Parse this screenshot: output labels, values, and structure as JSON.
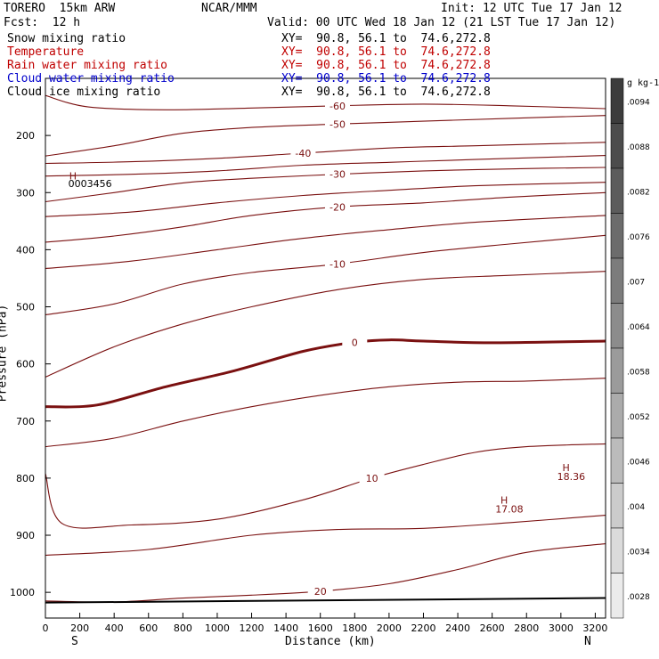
{
  "header": {
    "model": "TORERO  15km ARW",
    "forecast": "Fcst:  12 h",
    "center": "NCAR/MMM",
    "init": "Init: 12 UTC Tue 17 Jan 12",
    "valid": "Valid: 00 UTC Wed 18 Jan 12 (21 LST Tue 17 Jan 12)"
  },
  "legend": [
    {
      "label": "Snow mixing ratio",
      "xy": "XY=  90.8, 56.1 to  74.6,272.8",
      "color": "#000000"
    },
    {
      "label": "Temperature",
      "xy": "XY=  90.8, 56.1 to  74.6,272.8",
      "color": "#c00000"
    },
    {
      "label": "Rain water mixing ratio",
      "xy": "XY=  90.8, 56.1 to  74.6,272.8",
      "color": "#c00000"
    },
    {
      "label": "Cloud water mixing ratio",
      "xy": "XY=  90.8, 56.1 to  74.6,272.8",
      "color": "#0000cc"
    },
    {
      "label": "Cloud ice mixing ratio",
      "xy": "XY=  90.8, 56.1 to  74.6,272.8",
      "color": "#000000"
    }
  ],
  "colorbar": {
    "unit": "g kg-1",
    "ticks": [
      ".0094",
      ".0088",
      ".0082",
      ".0076",
      ".007",
      ".0064",
      ".0058",
      ".0052",
      ".0046",
      ".004",
      ".0034",
      ".0028"
    ]
  },
  "chart_data": {
    "type": "contour",
    "xlabel": "Distance (km)",
    "ylabel": "Pressure (hPa)",
    "x_ticks": [
      0,
      200,
      400,
      600,
      800,
      1000,
      1200,
      1400,
      1600,
      1800,
      2000,
      2200,
      2400,
      2600,
      2800,
      3000,
      3200
    ],
    "y_ticks": [
      200,
      300,
      400,
      500,
      600,
      700,
      800,
      900,
      1000
    ],
    "xlim": [
      0,
      3260
    ],
    "ylim": [
      1045,
      100
    ],
    "x_end_labels": {
      "left": "S",
      "right": "N"
    },
    "isotherms": [
      {
        "value": -60,
        "points": [
          [
            0,
            130
          ],
          [
            250,
            150
          ],
          [
            700,
            155
          ],
          [
            1200,
            152
          ],
          [
            1700,
            148
          ],
          [
            2200,
            145
          ],
          [
            2700,
            148
          ],
          [
            3260,
            153
          ]
        ]
      },
      {
        "value": -50,
        "points": [
          [
            0,
            236
          ],
          [
            400,
            218
          ],
          [
            800,
            196
          ],
          [
            1200,
            186
          ],
          [
            1700,
            180
          ],
          [
            2200,
            175
          ],
          [
            2700,
            170
          ],
          [
            3260,
            165
          ]
        ]
      },
      {
        "value": -40,
        "points": [
          [
            0,
            249
          ],
          [
            500,
            246
          ],
          [
            1000,
            240
          ],
          [
            1500,
            231
          ],
          [
            2000,
            222
          ],
          [
            2500,
            218
          ],
          [
            3260,
            212
          ]
        ]
      },
      {
        "value": -35,
        "points": [
          [
            0,
            271
          ],
          [
            500,
            268
          ],
          [
            1000,
            262
          ],
          [
            1500,
            252
          ],
          [
            2000,
            247
          ],
          [
            2500,
            242
          ],
          [
            3260,
            235
          ]
        ]
      },
      {
        "value": -30,
        "points": [
          [
            0,
            316
          ],
          [
            400,
            300
          ],
          [
            800,
            283
          ],
          [
            1200,
            275
          ],
          [
            1700,
            268
          ],
          [
            2200,
            262
          ],
          [
            2800,
            258
          ],
          [
            3260,
            256
          ]
        ]
      },
      {
        "value": -25,
        "points": [
          [
            0,
            342
          ],
          [
            500,
            334
          ],
          [
            1000,
            318
          ],
          [
            1500,
            305
          ],
          [
            2000,
            296
          ],
          [
            2500,
            288
          ],
          [
            3260,
            282
          ]
        ]
      },
      {
        "value": -20,
        "points": [
          [
            0,
            387
          ],
          [
            400,
            376
          ],
          [
            800,
            360
          ],
          [
            1200,
            340
          ],
          [
            1700,
            325
          ],
          [
            2200,
            318
          ],
          [
            2700,
            308
          ],
          [
            3260,
            300
          ]
        ]
      },
      {
        "value": -15,
        "points": [
          [
            0,
            433
          ],
          [
            500,
            420
          ],
          [
            1000,
            400
          ],
          [
            1500,
            380
          ],
          [
            2000,
            365
          ],
          [
            2500,
            352
          ],
          [
            3260,
            340
          ]
        ]
      },
      {
        "value": -10,
        "points": [
          [
            0,
            514
          ],
          [
            400,
            495
          ],
          [
            800,
            460
          ],
          [
            1200,
            440
          ],
          [
            1700,
            425
          ],
          [
            2200,
            405
          ],
          [
            2700,
            390
          ],
          [
            3260,
            375
          ]
        ]
      },
      {
        "value": -5,
        "points": [
          [
            0,
            623
          ],
          [
            400,
            570
          ],
          [
            800,
            530
          ],
          [
            1200,
            500
          ],
          [
            1700,
            470
          ],
          [
            2200,
            452
          ],
          [
            2700,
            445
          ],
          [
            3260,
            438
          ]
        ]
      },
      {
        "value": 0,
        "points": [
          [
            0,
            675
          ],
          [
            300,
            672
          ],
          [
            700,
            640
          ],
          [
            1100,
            612
          ],
          [
            1500,
            578
          ],
          [
            1800,
            562
          ],
          [
            2000,
            558
          ],
          [
            2200,
            560
          ],
          [
            2600,
            563
          ],
          [
            3260,
            560
          ]
        ]
      },
      {
        "value": 5,
        "points": [
          [
            0,
            745
          ],
          [
            400,
            730
          ],
          [
            800,
            700
          ],
          [
            1200,
            675
          ],
          [
            1600,
            655
          ],
          [
            2000,
            640
          ],
          [
            2400,
            632
          ],
          [
            2800,
            630
          ],
          [
            3260,
            625
          ]
        ]
      },
      {
        "value": 10,
        "points": [
          [
            0,
            792
          ],
          [
            100,
            880
          ],
          [
            500,
            882
          ],
          [
            1000,
            872
          ],
          [
            1500,
            838
          ],
          [
            1900,
            800
          ],
          [
            2200,
            776
          ],
          [
            2500,
            755
          ],
          [
            2800,
            745
          ],
          [
            3260,
            740
          ]
        ]
      },
      {
        "value": 15,
        "points": [
          [
            0,
            935
          ],
          [
            600,
            925
          ],
          [
            1200,
            900
          ],
          [
            1700,
            890
          ],
          [
            2200,
            888
          ],
          [
            2700,
            878
          ],
          [
            3260,
            865
          ]
        ]
      },
      {
        "value": 20,
        "points": [
          [
            0,
            1015
          ],
          [
            400,
            1017
          ],
          [
            800,
            1010
          ],
          [
            1200,
            1005
          ],
          [
            1600,
            998
          ],
          [
            2000,
            985
          ],
          [
            2400,
            960
          ],
          [
            2800,
            930
          ],
          [
            3260,
            915
          ]
        ]
      }
    ],
    "labels": [
      {
        "text": "H",
        "x": 160,
        "y": 277
      },
      {
        "text": "0003456",
        "x": 260,
        "y": 290
      },
      {
        "text": "H",
        "x": 2670,
        "y": 845
      },
      {
        "text": "17.08",
        "x": 2700,
        "y": 860
      },
      {
        "text": "H",
        "x": 3030,
        "y": 788
      },
      {
        "text": "18.36",
        "x": 3060,
        "y": 803
      }
    ]
  }
}
